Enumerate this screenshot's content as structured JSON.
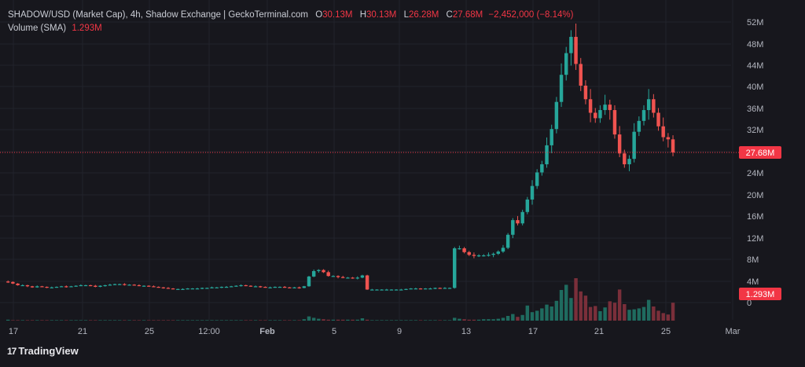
{
  "legend": {
    "title": "SHADOW/USD (Market Cap), 4h, Shadow Exchange | GeckoTerminal.com",
    "o_key": "O",
    "o_val": "30.13M",
    "h_key": "H",
    "h_val": "30.13M",
    "l_key": "L",
    "l_val": "26.28M",
    "c_key": "C",
    "c_val": "27.68M",
    "change": "−2,452,000 (−8.14%)",
    "volume_label": "Volume (SMA)",
    "volume_val": "1.293M"
  },
  "branding": {
    "logo_text": "TradingView",
    "logo_mark": "17"
  },
  "colors": {
    "up": "#26a69a",
    "down": "#ef5350",
    "background": "#17171d",
    "last_price_label": "#f23645"
  },
  "chart_data": {
    "type": "candlestick",
    "title": "SHADOW/USD (Market Cap), 4h",
    "y_unit": "USD market cap",
    "y_ticks": [
      "52M",
      "48M",
      "44M",
      "40M",
      "36M",
      "32M",
      "28M",
      "24M",
      "20M",
      "16M",
      "12M",
      "8M",
      "4M",
      "0"
    ],
    "ylim": [
      0,
      52
    ],
    "x_ticks": [
      "17",
      "21",
      "25",
      "12:00",
      "Feb",
      "5",
      "9",
      "13",
      "17",
      "21",
      "25",
      "Mar"
    ],
    "last_price_label": "27.68M",
    "volume_sma_label": "1.293M",
    "grid": true,
    "price_series_millions": [
      3.8,
      3.5,
      3.2,
      3.2,
      3.0,
      2.8,
      3.0,
      2.9,
      2.8,
      2.8,
      2.9,
      3.0,
      2.9,
      3.0,
      3.1,
      3.2,
      3.2,
      3.1,
      2.9,
      3.1,
      3.2,
      3.3,
      3.4,
      3.4,
      3.3,
      3.3,
      3.2,
      3.1,
      3.1,
      3.0,
      2.9,
      2.8,
      2.7,
      2.6,
      2.5,
      2.5,
      2.5,
      2.6,
      2.6,
      2.6,
      2.7,
      2.7,
      2.8,
      2.8,
      2.9,
      2.9,
      3.0,
      3.1,
      3.2,
      3.1,
      3.0,
      3.0,
      2.9,
      2.8,
      2.8,
      2.9,
      2.9,
      2.8,
      2.7,
      2.8,
      2.7,
      3.0,
      4.8,
      5.8,
      6.0,
      5.6,
      4.9,
      4.9,
      4.7,
      4.6,
      4.6,
      4.5,
      4.6,
      5.0,
      2.4,
      2.4,
      2.4,
      2.4,
      2.4,
      2.4,
      2.4,
      2.4,
      2.5,
      2.6,
      2.6,
      2.5,
      2.6,
      2.6,
      2.7,
      2.6,
      2.7,
      2.7,
      10.0,
      10.0,
      9.3,
      8.8,
      8.6,
      8.7,
      8.7,
      8.8,
      9.0,
      9.4,
      10.1,
      12.5,
      15.2,
      14.6,
      16.7,
      19.0,
      21.5,
      24.0,
      25.5,
      29.0,
      32.0,
      37.0,
      42.0,
      46.0,
      49.0,
      44.0,
      40.0,
      37.5,
      35.0,
      34.0,
      35.5,
      36.5,
      35.5,
      31.0,
      27.5,
      25.5,
      26.5,
      31.5,
      33.5,
      35.5,
      37.5,
      35.0,
      32.5,
      30.5,
      30.1,
      27.68
    ],
    "volume_series_millions": [
      0.2,
      0.1,
      0.1,
      0.1,
      0.1,
      0.1,
      0.1,
      0.1,
      0.1,
      0.1,
      0.1,
      0.1,
      0.1,
      0.1,
      0.1,
      0.1,
      0.1,
      0.1,
      0.1,
      0.1,
      0.1,
      0.1,
      0.1,
      0.1,
      0.1,
      0.1,
      0.1,
      0.1,
      0.1,
      0.1,
      0.1,
      0.1,
      0.1,
      0.1,
      0.1,
      0.1,
      0.1,
      0.1,
      0.1,
      0.1,
      0.1,
      0.1,
      0.1,
      0.1,
      0.1,
      0.1,
      0.1,
      0.1,
      0.1,
      0.1,
      0.1,
      0.1,
      0.1,
      0.1,
      0.1,
      0.1,
      0.1,
      0.1,
      0.1,
      0.1,
      0.1,
      0.3,
      0.9,
      0.6,
      0.4,
      0.3,
      0.2,
      0.2,
      0.2,
      0.2,
      0.2,
      0.2,
      0.2,
      0.5,
      0.2,
      0.1,
      0.1,
      0.1,
      0.1,
      0.1,
      0.1,
      0.1,
      0.1,
      0.1,
      0.1,
      0.1,
      0.1,
      0.1,
      0.1,
      0.1,
      0.1,
      0.1,
      0.6,
      0.4,
      0.3,
      0.2,
      0.2,
      0.2,
      0.3,
      0.3,
      0.3,
      0.4,
      0.6,
      1.0,
      1.4,
      0.8,
      1.2,
      3.2,
      1.8,
      2.1,
      2.6,
      3.4,
      3.0,
      4.2,
      6.5,
      7.6,
      4.8,
      9.0,
      6.2,
      5.3,
      2.9,
      3.1,
      2.0,
      2.8,
      4.1,
      3.8,
      6.6,
      3.5,
      2.3,
      2.4,
      2.6,
      2.9,
      4.4,
      3.0,
      2.1,
      1.6,
      1.3,
      3.8
    ]
  }
}
